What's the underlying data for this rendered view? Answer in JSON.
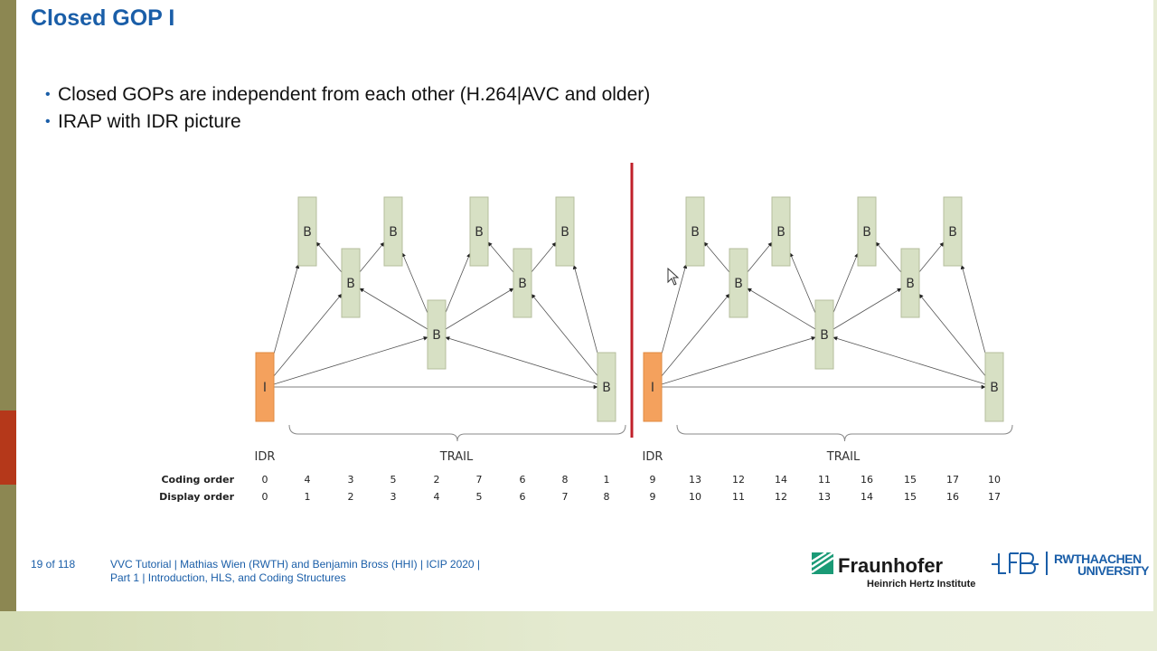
{
  "slide": {
    "title": "Closed GOP I",
    "bullets": [
      "Closed GOPs are independent from each other (H.264|AVC and older)",
      "IRAP with IDR picture"
    ]
  },
  "diagram": {
    "row_labels": {
      "coding": "Coding order",
      "display": "Display order"
    },
    "gop_labels": [
      "IDR",
      "TRAIL",
      "IDR",
      "TRAIL"
    ],
    "left_gop": {
      "frames": [
        "I",
        "B",
        "B",
        "B",
        "B",
        "B",
        "B",
        "B",
        "B"
      ],
      "coding_order": [
        "0",
        "4",
        "3",
        "5",
        "2",
        "7",
        "6",
        "8",
        "1"
      ],
      "display_order": [
        "0",
        "1",
        "2",
        "3",
        "4",
        "5",
        "6",
        "7",
        "8"
      ]
    },
    "right_gop": {
      "frames": [
        "I",
        "B",
        "B",
        "B",
        "B",
        "B",
        "B",
        "B",
        "B"
      ],
      "coding_order": [
        "9",
        "13",
        "12",
        "14",
        "11",
        "16",
        "15",
        "17",
        "10"
      ],
      "display_order": [
        "9",
        "10",
        "11",
        "12",
        "13",
        "14",
        "15",
        "16",
        "17"
      ]
    },
    "colors": {
      "i_frame": "#f4a15d",
      "b_frame": "#d7e0c4",
      "divider": "#c0202a",
      "arrow": "#555555"
    }
  },
  "footer": {
    "page": "19 of 118",
    "line1": "VVC Tutorial  |  Mathias Wien (RWTH) and Benjamin Bross (HHI)  |  ICIP 2020  |",
    "line2": "Part 1  |  Introduction, HLS, and Coding Structures"
  },
  "logos": {
    "fraunhofer_name": "Fraunhofer",
    "fraunhofer_sub": "Heinrich Hertz Institute",
    "lfb": "LfB",
    "rwth_line1": "RWTHAACHEN",
    "rwth_line2": "UNIVERSITY"
  }
}
